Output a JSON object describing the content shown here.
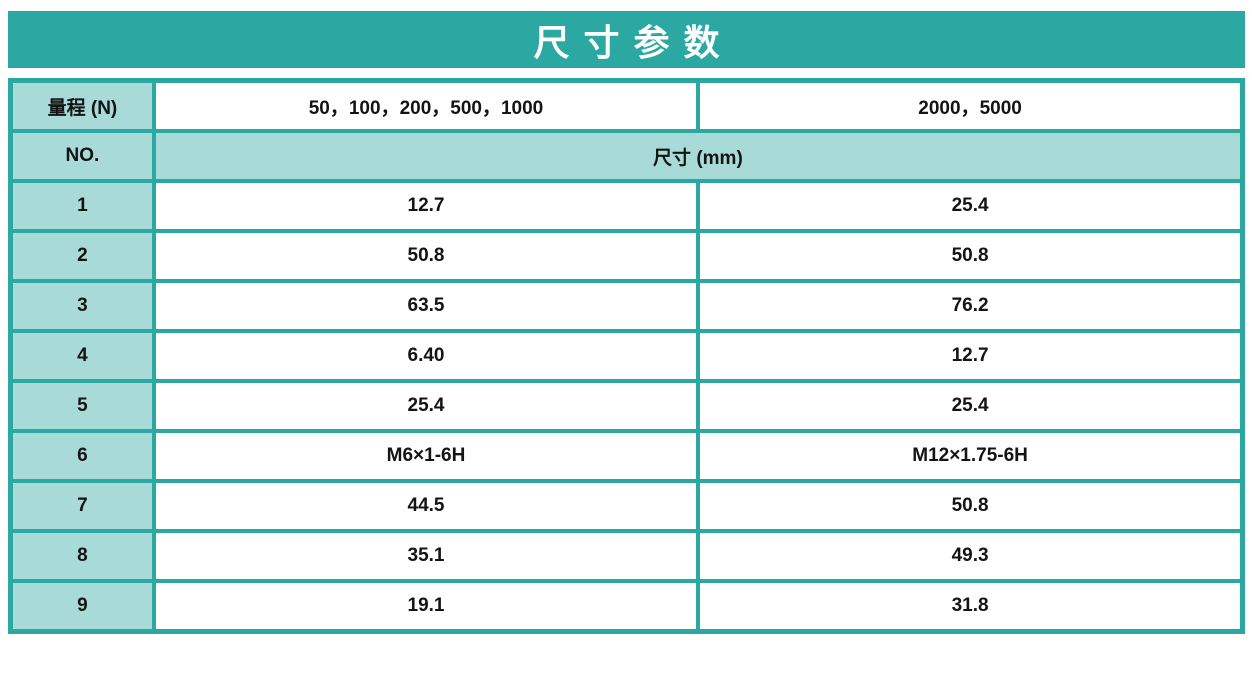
{
  "title": "尺寸参数",
  "colors": {
    "accent_teal": "#2ba8a2",
    "cell_teal": "#a8dbd8",
    "title_text": "#ffffff",
    "cell_text": "#141414",
    "page_background": "#ffffff"
  },
  "table": {
    "range_row": {
      "label": "量程 (N)",
      "range_group_1": "50，100，200，500，1000",
      "range_group_2": "2000，5000"
    },
    "no_row": {
      "label": "NO.",
      "merged_label": "尺寸 (mm)"
    },
    "data_rows": [
      {
        "no": "1",
        "col1": "12.7",
        "col2": "25.4"
      },
      {
        "no": "2",
        "col1": "50.8",
        "col2": "50.8"
      },
      {
        "no": "3",
        "col1": "63.5",
        "col2": "76.2"
      },
      {
        "no": "4",
        "col1": "6.40",
        "col2": "12.7"
      },
      {
        "no": "5",
        "col1": "25.4",
        "col2": "25.4"
      },
      {
        "no": "6",
        "col1": "M6×1-6H",
        "col2": "M12×1.75-6H"
      },
      {
        "no": "7",
        "col1": "44.5",
        "col2": "50.8"
      },
      {
        "no": "8",
        "col1": "35.1",
        "col2": "49.3"
      },
      {
        "no": "9",
        "col1": "19.1",
        "col2": "31.8"
      }
    ]
  }
}
